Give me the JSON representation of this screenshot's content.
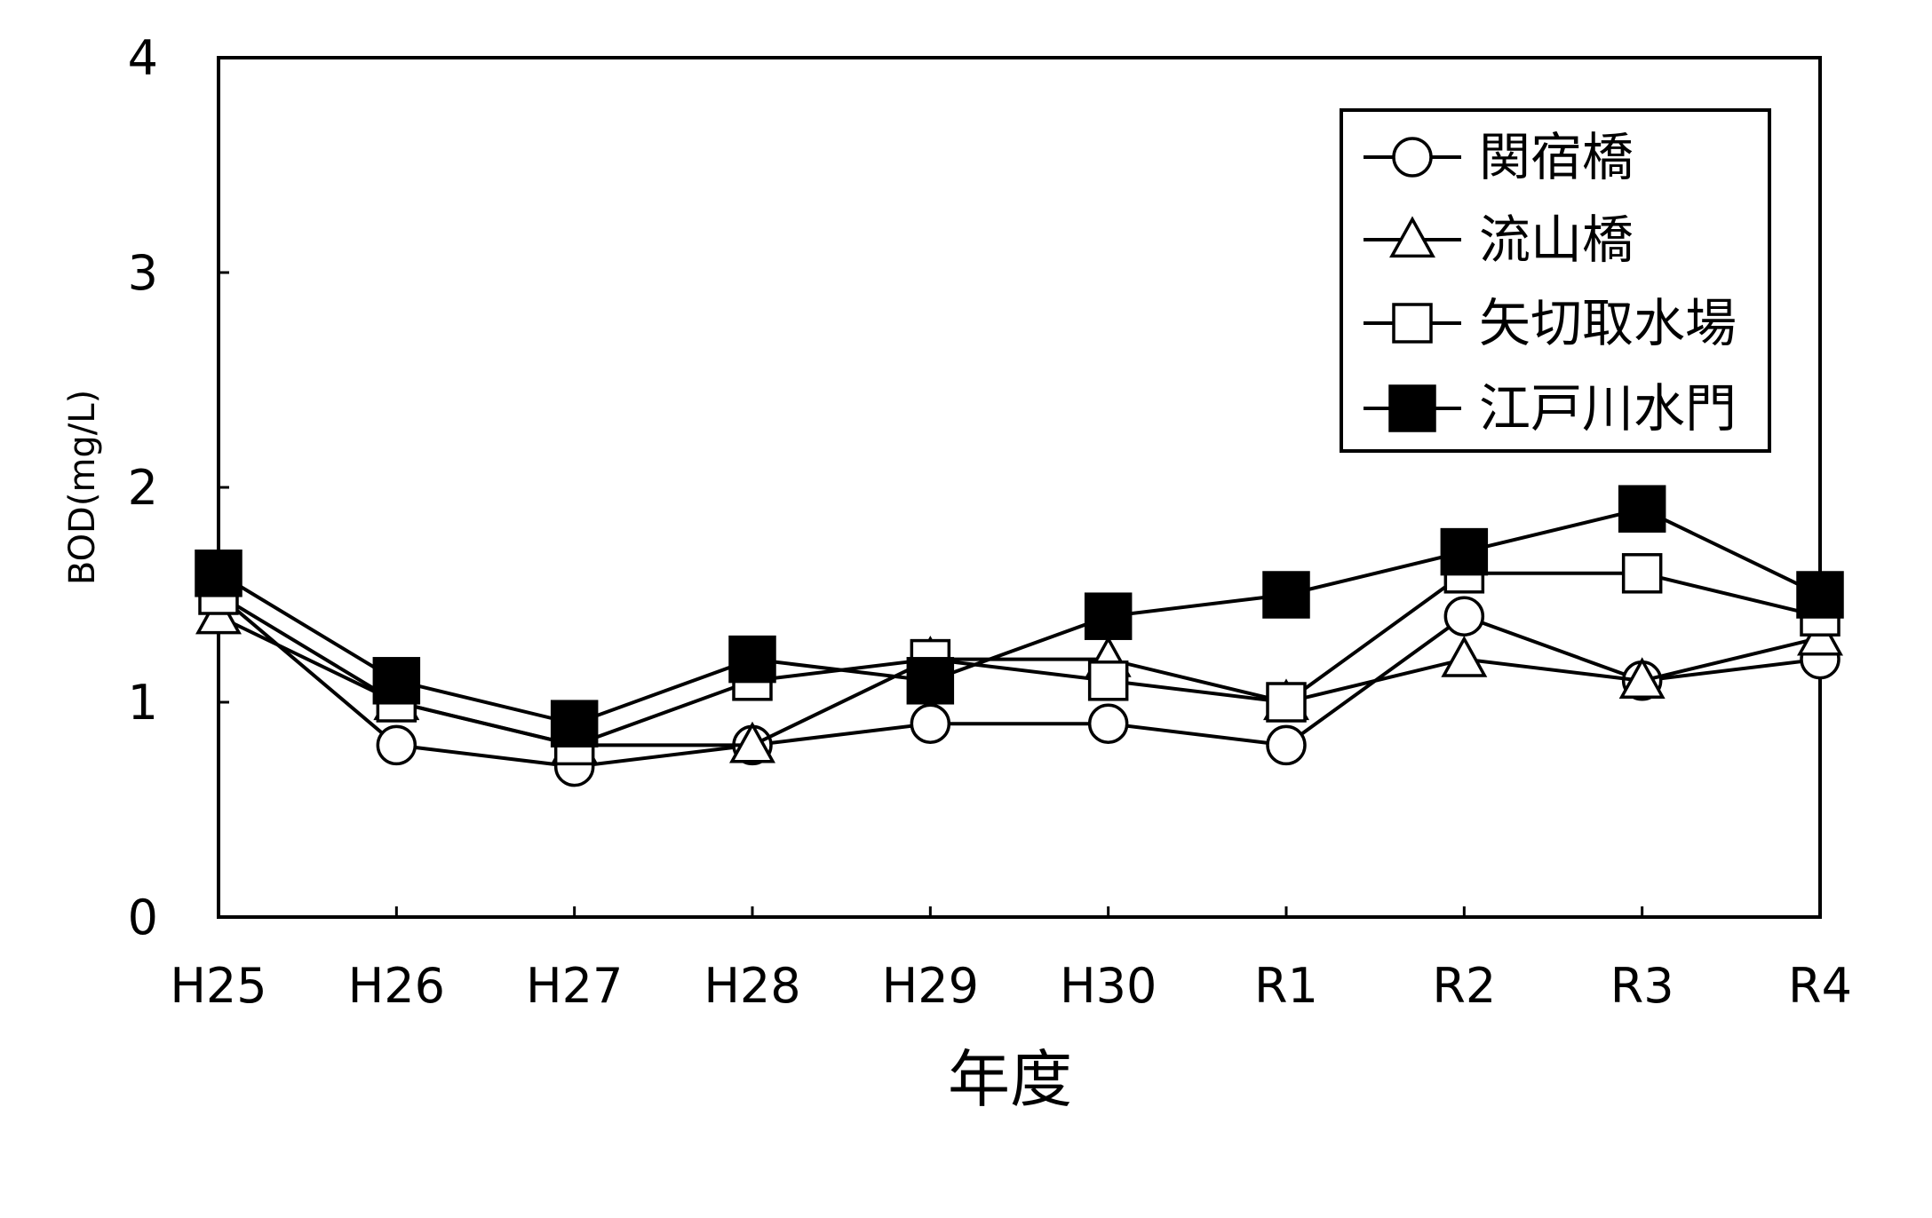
{
  "chart_data": {
    "type": "line",
    "title": "",
    "xlabel": "年度",
    "ylabel": "BOD(mg/L)",
    "categories": [
      "H25",
      "H26",
      "H27",
      "H28",
      "H29",
      "H30",
      "R1",
      "R2",
      "R3",
      "R4"
    ],
    "ylim": [
      0,
      4
    ],
    "yticks": [
      "0",
      "1",
      "2",
      "3",
      "4"
    ],
    "grid": false,
    "legend_position": "top-right",
    "series": [
      {
        "name": "関宿橋",
        "marker": "circle-open",
        "values": [
          1.5,
          0.8,
          0.7,
          0.8,
          0.9,
          0.9,
          0.8,
          1.4,
          1.1,
          1.2
        ]
      },
      {
        "name": "流山橋",
        "marker": "triangle-open",
        "values": [
          1.4,
          1.0,
          0.8,
          0.8,
          1.2,
          1.2,
          1.0,
          1.2,
          1.1,
          1.3
        ]
      },
      {
        "name": "矢切取水場",
        "marker": "square-open",
        "values": [
          1.5,
          1.0,
          0.8,
          1.1,
          1.2,
          1.1,
          1.0,
          1.6,
          1.6,
          1.4
        ]
      },
      {
        "name": "江戸川水門",
        "marker": "square-filled",
        "values": [
          1.6,
          1.1,
          0.9,
          1.2,
          1.1,
          1.4,
          1.5,
          1.7,
          1.9,
          1.5
        ]
      }
    ]
  }
}
